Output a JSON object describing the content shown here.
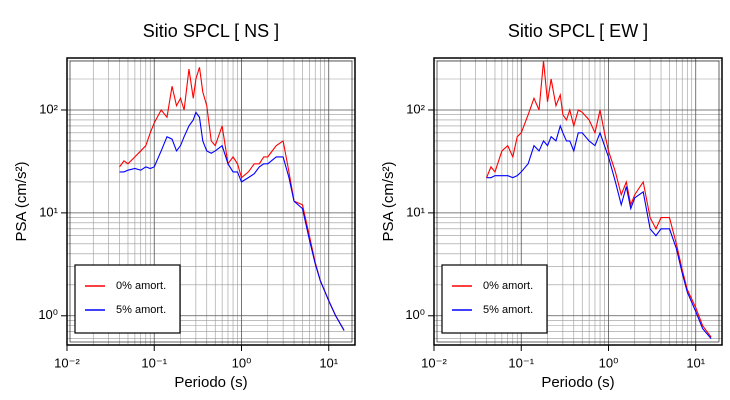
{
  "chart_data": [
    {
      "type": "line",
      "title": "Sitio SPCL [ NS ]",
      "xlabel": "Periodo (s)",
      "ylabel": "PSA (cm/s²)",
      "log_x": true,
      "log_y": true,
      "grid": true,
      "legend": "lower left",
      "xlim": [
        0.01,
        20
      ],
      "ylim": [
        0.52,
        320
      ],
      "xticks": [
        {
          "value": 0.01,
          "label": "10⁻²"
        },
        {
          "value": 0.1,
          "label": "10⁻¹"
        },
        {
          "value": 1,
          "label": "10⁰"
        },
        {
          "value": 10,
          "label": "10¹"
        }
      ],
      "yticks": [
        {
          "value": 1,
          "label": "10⁰"
        },
        {
          "value": 10,
          "label": "10¹"
        },
        {
          "value": 100,
          "label": "10²"
        }
      ],
      "x": [
        0.04,
        0.045,
        0.05,
        0.06,
        0.07,
        0.08,
        0.09,
        0.1,
        0.12,
        0.14,
        0.16,
        0.18,
        0.2,
        0.22,
        0.25,
        0.28,
        0.3,
        0.33,
        0.36,
        0.4,
        0.45,
        0.5,
        0.6,
        0.7,
        0.8,
        0.9,
        1.0,
        1.2,
        1.4,
        1.6,
        1.8,
        2.0,
        2.5,
        3.0,
        3.5,
        4.0,
        5.0,
        6.0,
        7.0,
        8.0,
        10,
        12,
        15
      ],
      "series": [
        {
          "name": "0% amort.",
          "color": "#ff0000",
          "values": [
            28,
            32,
            30,
            35,
            40,
            45,
            60,
            75,
            100,
            85,
            170,
            110,
            130,
            100,
            250,
            130,
            200,
            260,
            150,
            110,
            50,
            45,
            70,
            30,
            35,
            30,
            22,
            25,
            30,
            30,
            35,
            35,
            45,
            50,
            25,
            13,
            12,
            6,
            3.3,
            2.2,
            1.4,
            1.0,
            0.72
          ]
        },
        {
          "name": "5% amort.",
          "color": "#0000ff",
          "values": [
            25,
            25,
            26,
            27,
            26,
            28,
            27,
            28,
            40,
            55,
            52,
            40,
            45,
            55,
            70,
            80,
            95,
            85,
            50,
            40,
            38,
            40,
            45,
            30,
            25,
            25,
            20,
            22,
            24,
            28,
            30,
            30,
            35,
            35,
            22,
            13,
            11,
            5.5,
            3.2,
            2.2,
            1.4,
            1.0,
            0.72
          ]
        }
      ]
    },
    {
      "type": "line",
      "title": "Sitio SPCL [ EW ]",
      "xlabel": "Periodo (s)",
      "ylabel": "PSA (cm/s²)",
      "log_x": true,
      "log_y": true,
      "grid": true,
      "legend": "lower left",
      "xlim": [
        0.01,
        20
      ],
      "ylim": [
        0.52,
        320
      ],
      "xticks": [
        {
          "value": 0.01,
          "label": "10⁻²"
        },
        {
          "value": 0.1,
          "label": "10⁻¹"
        },
        {
          "value": 1,
          "label": "10⁰"
        },
        {
          "value": 10,
          "label": "10¹"
        }
      ],
      "yticks": [
        {
          "value": 1,
          "label": "10⁰"
        },
        {
          "value": 10,
          "label": "10¹"
        },
        {
          "value": 100,
          "label": "10²"
        }
      ],
      "x": [
        0.04,
        0.045,
        0.05,
        0.06,
        0.07,
        0.08,
        0.09,
        0.1,
        0.12,
        0.14,
        0.16,
        0.18,
        0.2,
        0.22,
        0.25,
        0.28,
        0.3,
        0.33,
        0.36,
        0.4,
        0.45,
        0.5,
        0.6,
        0.7,
        0.8,
        0.9,
        1.0,
        1.2,
        1.4,
        1.6,
        1.8,
        2.0,
        2.5,
        3.0,
        3.5,
        4.0,
        5.0,
        6.0,
        7.0,
        8.0,
        10,
        12,
        15
      ],
      "series": [
        {
          "name": "0% amort.",
          "color": "#ff0000",
          "values": [
            22,
            28,
            25,
            40,
            45,
            35,
            55,
            60,
            90,
            130,
            100,
            300,
            120,
            200,
            110,
            140,
            90,
            80,
            100,
            70,
            100,
            95,
            80,
            60,
            100,
            60,
            40,
            25,
            15,
            20,
            12,
            15,
            20,
            9,
            7,
            9,
            9,
            5,
            2.8,
            1.8,
            1.2,
            0.8,
            0.62
          ]
        },
        {
          "name": "5% amort.",
          "color": "#0000ff",
          "values": [
            22,
            22,
            23,
            23,
            23,
            22,
            23,
            25,
            30,
            45,
            40,
            50,
            45,
            55,
            50,
            70,
            60,
            50,
            50,
            40,
            60,
            60,
            50,
            45,
            60,
            45,
            35,
            20,
            12,
            18,
            11,
            14,
            16,
            7,
            6,
            7,
            7,
            4.5,
            2.6,
            1.7,
            1.1,
            0.75,
            0.6
          ]
        }
      ]
    }
  ]
}
